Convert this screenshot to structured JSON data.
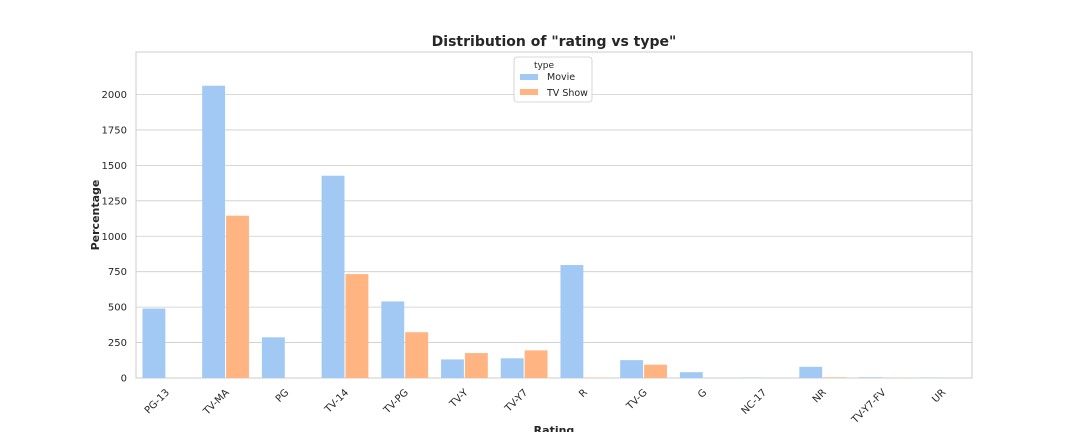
{
  "chart_data": {
    "type": "bar",
    "title": "Distribution of \"rating vs type\"",
    "xlabel": "Rating",
    "ylabel": "Percentage",
    "categories": [
      "PG-13",
      "TV-MA",
      "PG",
      "TV-14",
      "TV-PG",
      "TV-Y",
      "TV-Y7",
      "R",
      "TV-G",
      "G",
      "NC-17",
      "NR",
      "TV-Y7-FV",
      "UR"
    ],
    "series": [
      {
        "name": "Movie",
        "color": "#a1c9f4",
        "values": [
          490,
          2062,
          287,
          1427,
          540,
          131,
          139,
          797,
          126,
          41,
          3,
          79,
          5,
          3
        ]
      },
      {
        "name": "TV Show",
        "color": "#ffb482",
        "values": [
          0,
          1145,
          0,
          733,
          323,
          176,
          195,
          2,
          94,
          0,
          0,
          5,
          1,
          0
        ]
      }
    ],
    "ylim": [
      0,
      2300
    ],
    "yticks": [
      0,
      250,
      500,
      750,
      1000,
      1250,
      1500,
      1750,
      2000
    ],
    "grid": true,
    "legend": {
      "title": "type",
      "placement": "top-center"
    }
  }
}
